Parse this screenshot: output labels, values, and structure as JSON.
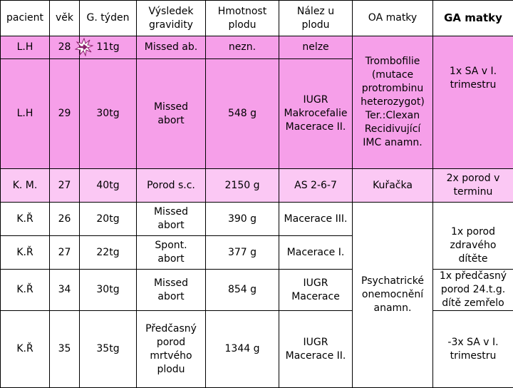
{
  "table": {
    "headers": {
      "pacient": "pacient",
      "vek": "věk",
      "tyden": "G. týden",
      "vysledek": "Výsledek\ngravidity",
      "hmotnost": "Hmotnost\nplodu",
      "nalez": "Nález u\nplodu",
      "oa": "OA matky",
      "ga": "GA matky"
    },
    "rows": [
      {
        "pacient": "L.H",
        "vek": "28",
        "tyden": "11tg",
        "vysledek": "Missed ab.",
        "hmotnost": "nezn.",
        "nalez": "nelze"
      },
      {
        "pacient": "L.H",
        "vek": "29",
        "tyden": "30tg",
        "vysledek": "Missed\nabort",
        "hmotnost": "548 g",
        "nalez": "IUGR\nMakrocefalie\nMacerace II."
      },
      {
        "pacient": "K. M.",
        "vek": "27",
        "tyden": "40tg",
        "vysledek": "Porod s.c.",
        "hmotnost": "2150 g",
        "nalez": "AS 2-6-7"
      },
      {
        "pacient": "K.Ř",
        "vek": "26",
        "tyden": "20tg",
        "vysledek": "Missed\nabort",
        "hmotnost": "390 g",
        "nalez": "Macerace III."
      },
      {
        "pacient": "K.Ř",
        "vek": "27",
        "tyden": "22tg",
        "vysledek": "Spont.\nabort",
        "hmotnost": "377 g",
        "nalez": "Macerace I."
      },
      {
        "pacient": "K.Ř",
        "vek": "34",
        "tyden": "30tg",
        "vysledek": "Missed\nabort",
        "hmotnost": "854 g",
        "nalez": "IUGR\nMacerace"
      },
      {
        "pacient": "K.Ř",
        "vek": "35",
        "tyden": "35tg",
        "vysledek": "Předčasný\nporod\nmrtvého\nplodu",
        "hmotnost": "1344 g",
        "nalez": "IUGR\nMacerace II."
      }
    ],
    "oa": {
      "lh": "Trombofilie\n(mutace\nprotrombinu\nheterozygot)\nTer.:Clexan\nRecidivující\nIMC anamn.",
      "km": "Kuřačka",
      "kr": "Psychatrické\nonemocnění\nanamn."
    },
    "ga": {
      "lh": "1x SA v I.\ntrimestru",
      "km": "2x porod v\nterminu",
      "kr1": "1x porod\nzdravého\ndítěte",
      "kr2": "1x předčasný\nporod 24.t.g.\ndítě zemřelo",
      "kr3": "-3x SA v I.\ntrimestru"
    }
  },
  "colors": {
    "pink": "#f69fe9",
    "light_pink": "#fbc8f4",
    "arrow_icon": "#8b1f6b"
  }
}
